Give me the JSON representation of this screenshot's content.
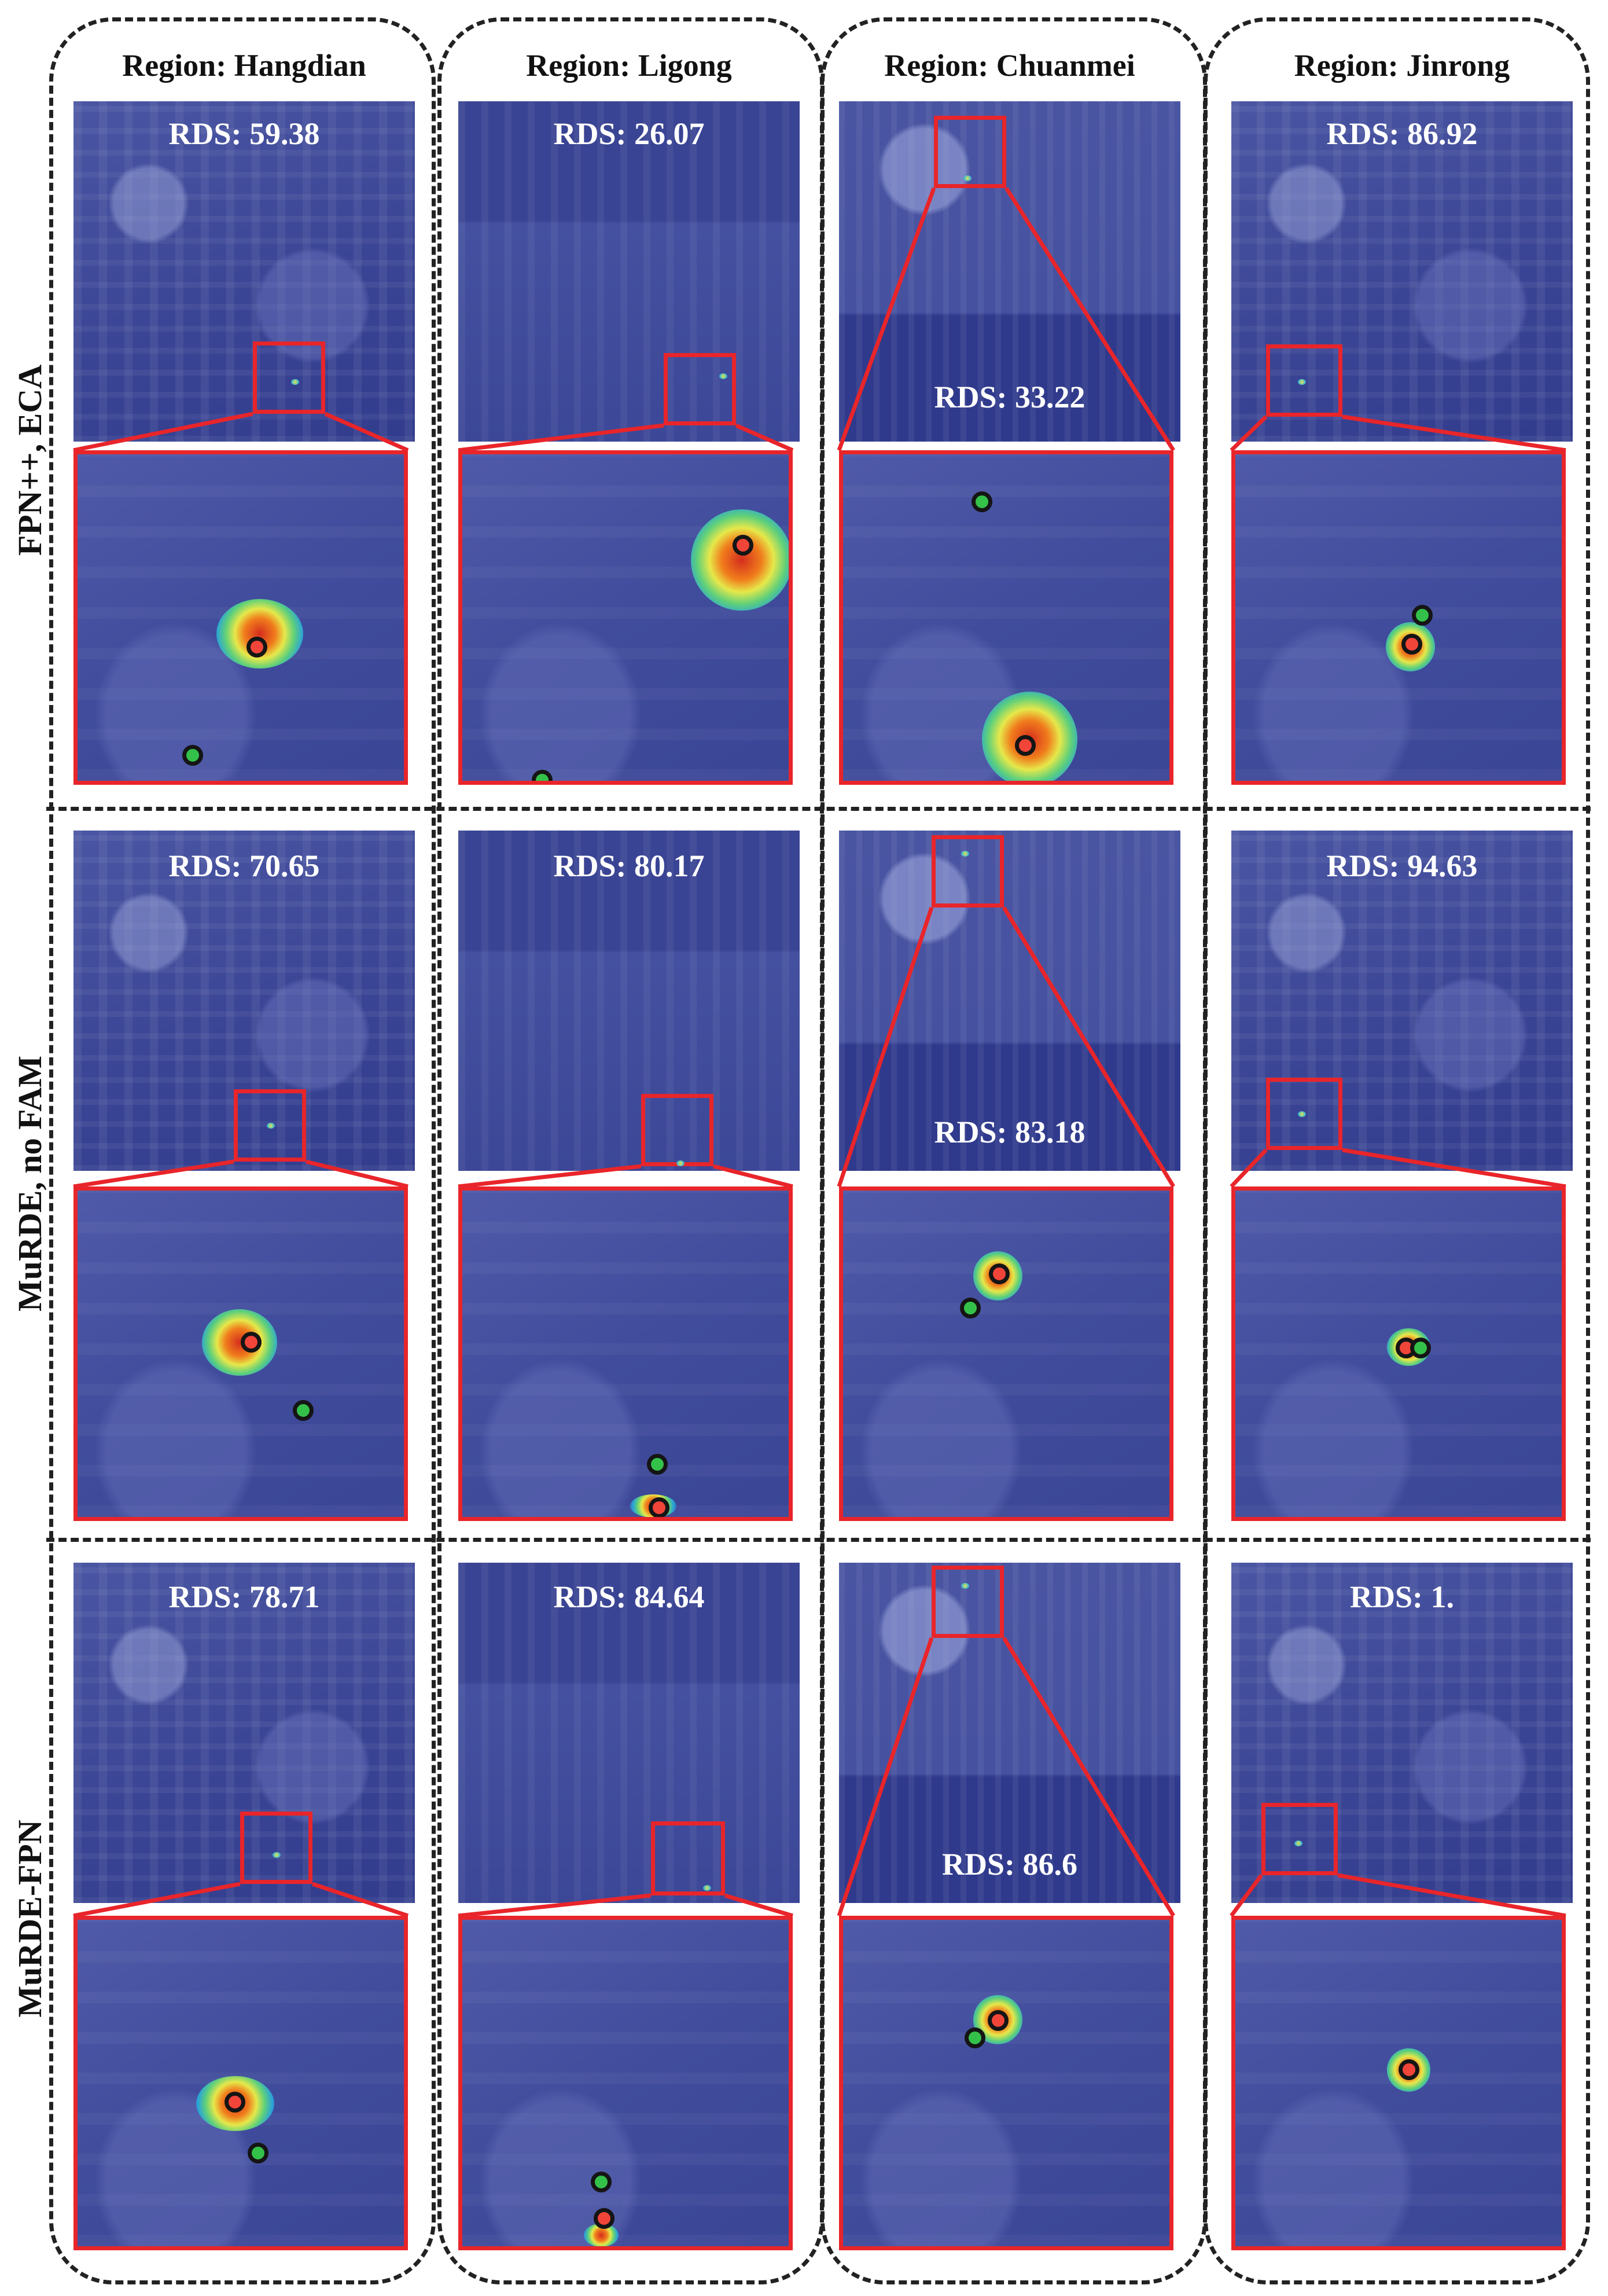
{
  "columns": [
    {
      "title": "Region: Hangdian"
    },
    {
      "title": "Region: Ligong"
    },
    {
      "title": "Region: Chuanmei"
    },
    {
      "title": "Region: Jinrong"
    }
  ],
  "rows": [
    {
      "label": "FPN++, ECA",
      "rds": [
        "RDS: 59.38",
        "RDS: 26.07",
        "RDS: 33.22",
        "RDS: 86.92"
      ]
    },
    {
      "label": "MuRDE, no FAM",
      "rds": [
        "RDS: 70.65",
        "RDS: 80.17",
        "RDS: 83.18",
        "RDS: 94.63"
      ]
    },
    {
      "label": "MuRDE-FPN",
      "rds": [
        "RDS: 78.71",
        "RDS: 84.64",
        "RDS: 86.6",
        "RDS: 1."
      ]
    }
  ],
  "colors": {
    "highlight_box": "#e8252a",
    "prediction_point": "#f2453a",
    "ground_truth_point": "#34c14a",
    "background_tint": "#3b4595"
  }
}
